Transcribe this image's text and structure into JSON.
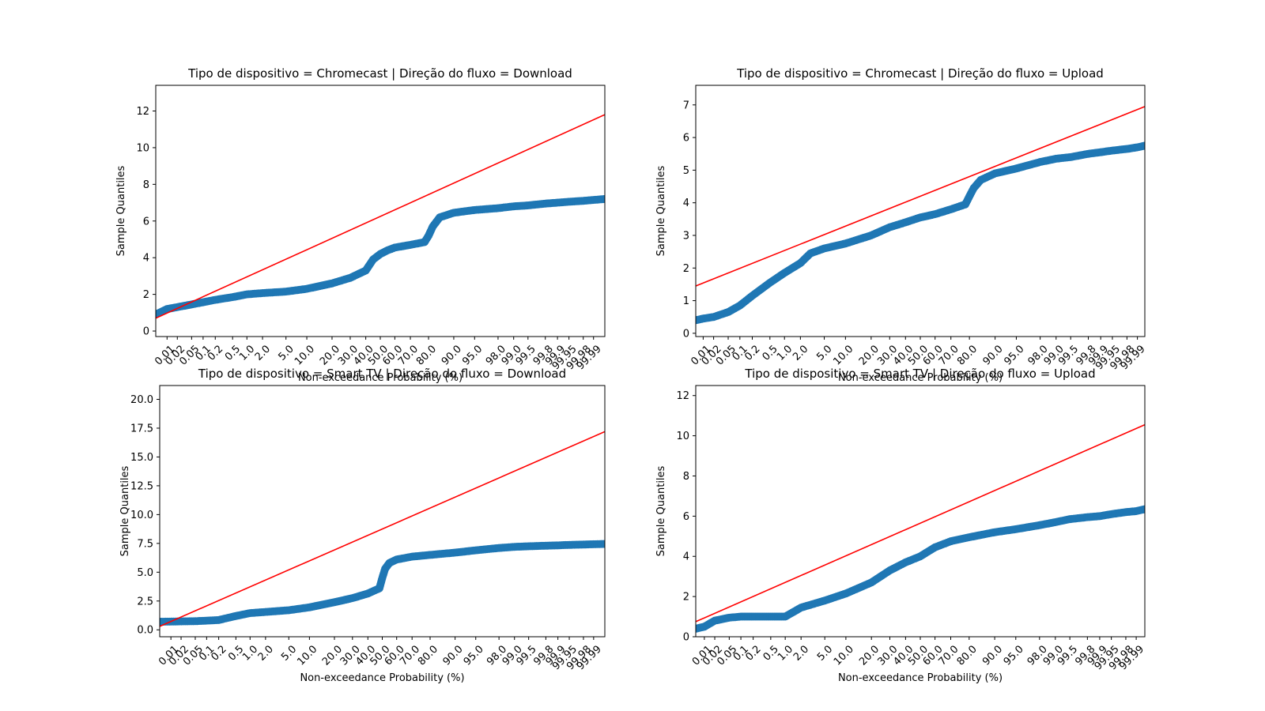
{
  "colors": {
    "points": "#1f77b4",
    "fit_line": "#ff0000",
    "axes": "#000000",
    "background": "#ffffff"
  },
  "chart_data": [
    {
      "type": "scatter",
      "title": "Tipo de dispositivo = Chromecast | Direção do fluxo = Download",
      "xlabel": "Non-exceedance Probability (%)",
      "ylabel": "Sample Quantiles",
      "x_scale": "normal-probability",
      "xlim": [
        0.0045,
        99.9955
      ],
      "ylim": [
        -0.3,
        13.4
      ],
      "xticks": [
        0.01,
        0.02,
        0.05,
        0.1,
        0.2,
        0.5,
        1.0,
        2.0,
        5.0,
        10.0,
        20.0,
        30.0,
        40.0,
        50.0,
        60.0,
        70.0,
        80.0,
        90.0,
        95.0,
        98.0,
        99.0,
        99.5,
        99.8,
        99.9,
        99.95,
        99.98,
        99.99
      ],
      "xtick_labels": [
        "0.01",
        "0.02",
        "0.05",
        "0.1",
        "0.2",
        "0.5",
        "1.0",
        "2.0",
        "5.0",
        "10.0",
        "20.0",
        "30.0",
        "40.0",
        "50.0",
        "60.0",
        "70.0",
        "80.0",
        "90.0",
        "95.0",
        "98.0",
        "99.0",
        "99.5",
        "99.8",
        "99.9",
        "99.95",
        "99.98",
        "99.99"
      ],
      "yticks": [
        0,
        2,
        4,
        6,
        8,
        10,
        12
      ],
      "ytick_labels": [
        "0",
        "2",
        "4",
        "6",
        "8",
        "10",
        "12"
      ],
      "grid": false,
      "fit_line": {
        "x": [
          0.0045,
          99.9955
        ],
        "y": [
          0.7,
          11.8
        ]
      },
      "points": {
        "x": [
          0.0045,
          0.01,
          0.05,
          0.2,
          0.5,
          1.0,
          2.0,
          5.0,
          10.0,
          20.0,
          30.0,
          40.0,
          45.0,
          50.0,
          55.0,
          60.0,
          70.0,
          78.0,
          80.0,
          82.0,
          85.0,
          90.0,
          95.0,
          98.0,
          99.0,
          99.5,
          99.8,
          99.9,
          99.95,
          99.98,
          99.99,
          99.9955
        ],
        "y": [
          0.9,
          1.2,
          1.45,
          1.7,
          1.85,
          2.0,
          2.07,
          2.15,
          2.3,
          2.6,
          2.9,
          3.3,
          3.9,
          4.2,
          4.4,
          4.55,
          4.7,
          4.85,
          5.2,
          5.7,
          6.2,
          6.45,
          6.6,
          6.7,
          6.8,
          6.85,
          6.95,
          7.0,
          7.05,
          7.1,
          7.15,
          7.2
        ]
      }
    },
    {
      "type": "scatter",
      "title": "Tipo de dispositivo = Chromecast | Direção do fluxo = Upload",
      "xlabel": "Non-exceedance Probability (%)",
      "ylabel": "Sample Quantiles",
      "x_scale": "normal-probability",
      "xlim": [
        0.006,
        99.994
      ],
      "ylim": [
        -0.1,
        7.6
      ],
      "xticks": [
        0.01,
        0.02,
        0.05,
        0.1,
        0.2,
        0.5,
        1.0,
        2.0,
        5.0,
        10.0,
        20.0,
        30.0,
        40.0,
        50.0,
        60.0,
        70.0,
        80.0,
        90.0,
        95.0,
        98.0,
        99.0,
        99.5,
        99.8,
        99.9,
        99.95,
        99.98,
        99.99
      ],
      "xtick_labels": [
        "0.01",
        "0.02",
        "0.05",
        "0.1",
        "0.2",
        "0.5",
        "1.0",
        "2.0",
        "5.0",
        "10.0",
        "20.0",
        "30.0",
        "40.0",
        "50.0",
        "60.0",
        "70.0",
        "80.0",
        "90.0",
        "95.0",
        "98.0",
        "99.0",
        "99.5",
        "99.8",
        "99.9",
        "99.95",
        "99.98",
        "99.99"
      ],
      "yticks": [
        0,
        1,
        2,
        3,
        4,
        5,
        6,
        7
      ],
      "ytick_labels": [
        "0",
        "1",
        "2",
        "3",
        "4",
        "5",
        "6",
        "7"
      ],
      "grid": false,
      "fit_line": {
        "x": [
          0.006,
          99.994
        ],
        "y": [
          1.45,
          6.95
        ]
      },
      "points": {
        "x": [
          0.006,
          0.01,
          0.02,
          0.05,
          0.1,
          0.2,
          0.5,
          1.0,
          2.0,
          3.0,
          5.0,
          10.0,
          20.0,
          30.0,
          40.0,
          50.0,
          60.0,
          70.0,
          78.0,
          80.0,
          82.0,
          85.0,
          90.0,
          95.0,
          98.0,
          99.0,
          99.5,
          99.8,
          99.9,
          99.95,
          99.98,
          99.99,
          99.994
        ],
        "y": [
          0.4,
          0.45,
          0.5,
          0.65,
          0.85,
          1.15,
          1.55,
          1.85,
          2.15,
          2.45,
          2.6,
          2.75,
          3.0,
          3.25,
          3.4,
          3.55,
          3.65,
          3.8,
          3.95,
          4.2,
          4.45,
          4.7,
          4.9,
          5.05,
          5.25,
          5.35,
          5.4,
          5.5,
          5.55,
          5.6,
          5.65,
          5.7,
          5.75
        ]
      }
    },
    {
      "type": "scatter",
      "title": "Tipo de dispositivo = Smart TV | Direção do fluxo = Download",
      "xlabel": "Non-exceedance Probability (%)",
      "ylabel": "Sample Quantiles",
      "x_scale": "normal-probability",
      "xlim": [
        0.0045,
        99.9955
      ],
      "ylim": [
        -0.6,
        21.2
      ],
      "xticks": [
        0.01,
        0.02,
        0.05,
        0.1,
        0.2,
        0.5,
        1.0,
        2.0,
        5.0,
        10.0,
        20.0,
        30.0,
        40.0,
        50.0,
        60.0,
        70.0,
        80.0,
        90.0,
        95.0,
        98.0,
        99.0,
        99.5,
        99.8,
        99.9,
        99.95,
        99.98,
        99.99
      ],
      "xtick_labels": [
        "0.01",
        "0.02",
        "0.05",
        "0.1",
        "0.2",
        "0.5",
        "1.0",
        "2.0",
        "5.0",
        "10.0",
        "20.0",
        "30.0",
        "40.0",
        "50.0",
        "60.0",
        "70.0",
        "80.0",
        "90.0",
        "95.0",
        "98.0",
        "99.0",
        "99.5",
        "99.8",
        "99.9",
        "99.95",
        "99.98",
        "99.99"
      ],
      "yticks": [
        0,
        2.5,
        5,
        7.5,
        10,
        12.5,
        15,
        17.5,
        20
      ],
      "ytick_labels": [
        "0.0",
        "2.5",
        "5.0",
        "7.5",
        "10.0",
        "12.5",
        "15.0",
        "17.5",
        "20.0"
      ],
      "grid": false,
      "fit_line": {
        "x": [
          0.0045,
          99.9955
        ],
        "y": [
          0.3,
          17.2
        ]
      },
      "points": {
        "x": [
          0.0045,
          0.05,
          0.2,
          0.5,
          1.0,
          2.0,
          5.0,
          10.0,
          20.0,
          30.0,
          40.0,
          48.0,
          50.0,
          52.0,
          55.0,
          60.0,
          70.0,
          80.0,
          90.0,
          95.0,
          98.0,
          99.0,
          99.5,
          99.8,
          99.9,
          99.95,
          99.98,
          99.99,
          99.9955
        ],
        "y": [
          0.7,
          0.75,
          0.85,
          1.2,
          1.45,
          1.55,
          1.7,
          1.95,
          2.4,
          2.75,
          3.15,
          3.6,
          4.5,
          5.3,
          5.8,
          6.1,
          6.35,
          6.5,
          6.7,
          6.9,
          7.1,
          7.2,
          7.25,
          7.3,
          7.33,
          7.37,
          7.4,
          7.43,
          7.45
        ]
      }
    },
    {
      "type": "scatter",
      "title": "Tipo de dispositivo = Smart TV | Direção do fluxo = Upload",
      "xlabel": "Non-exceedance Probability (%)",
      "ylabel": "Sample Quantiles",
      "x_scale": "normal-probability",
      "xlim": [
        0.0055,
        99.9945
      ],
      "ylim": [
        0,
        12.5
      ],
      "xticks": [
        0.01,
        0.02,
        0.05,
        0.1,
        0.2,
        0.5,
        1.0,
        2.0,
        5.0,
        10.0,
        20.0,
        30.0,
        40.0,
        50.0,
        60.0,
        70.0,
        80.0,
        90.0,
        95.0,
        98.0,
        99.0,
        99.5,
        99.8,
        99.9,
        99.95,
        99.98,
        99.99
      ],
      "xtick_labels": [
        "0.01",
        "0.02",
        "0.05",
        "0.1",
        "0.2",
        "0.5",
        "1.0",
        "2.0",
        "5.0",
        "10.0",
        "20.0",
        "30.0",
        "40.0",
        "50.0",
        "60.0",
        "70.0",
        "80.0",
        "90.0",
        "95.0",
        "98.0",
        "99.0",
        "99.5",
        "99.8",
        "99.9",
        "99.95",
        "99.98",
        "99.99"
      ],
      "yticks": [
        0,
        2,
        4,
        6,
        8,
        10,
        12
      ],
      "ytick_labels": [
        "0",
        "2",
        "4",
        "6",
        "8",
        "10",
        "12"
      ],
      "grid": false,
      "fit_line": {
        "x": [
          0.0055,
          99.9945
        ],
        "y": [
          0.75,
          10.55
        ]
      },
      "points": {
        "x": [
          0.0055,
          0.01,
          0.02,
          0.05,
          0.1,
          0.2,
          0.5,
          1.0,
          2.0,
          5.0,
          10.0,
          20.0,
          30.0,
          40.0,
          50.0,
          60.0,
          70.0,
          80.0,
          90.0,
          95.0,
          98.0,
          99.0,
          99.5,
          99.8,
          99.9,
          99.95,
          99.98,
          99.99,
          99.9945
        ],
        "y": [
          0.4,
          0.5,
          0.8,
          0.95,
          1.0,
          1.0,
          1.0,
          1.0,
          1.45,
          1.8,
          2.15,
          2.7,
          3.3,
          3.7,
          4.0,
          4.45,
          4.75,
          4.95,
          5.2,
          5.35,
          5.55,
          5.7,
          5.85,
          5.95,
          6.0,
          6.1,
          6.2,
          6.25,
          6.35
        ]
      }
    }
  ]
}
